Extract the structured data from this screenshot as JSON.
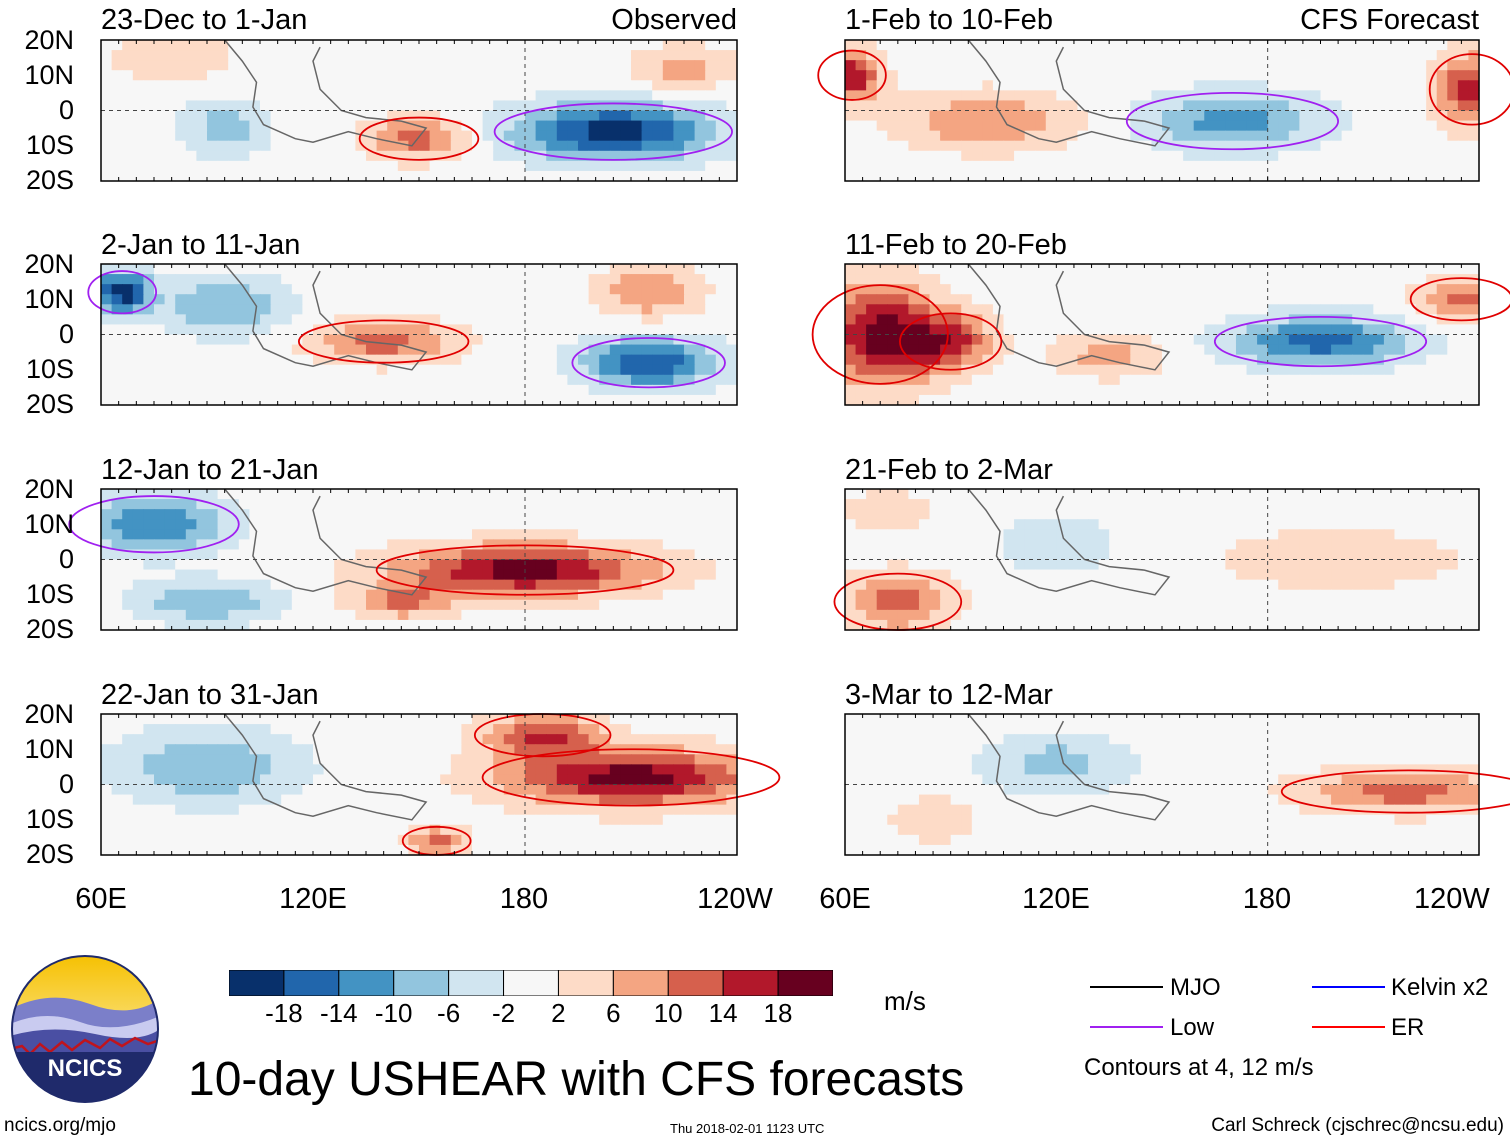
{
  "figure": {
    "title": "10-day USHEAR with CFS forecasts",
    "observed_label": "Observed",
    "forecast_label": "CFS Forecast",
    "units": "m/s",
    "contour_note": "Contours at 4, 12 m/s",
    "footer_url": "ncics.org/mjo",
    "footer_time": "Thu 2018-02-01 1123 UTC",
    "footer_credit": "Carl Schreck (cjschrec@ncsu.edu)",
    "logo_text": "NCICS"
  },
  "axes": {
    "lat_labels": [
      "20N",
      "10N",
      "0",
      "10S",
      "20S"
    ],
    "lon_labels": [
      "60E",
      "120E",
      "180",
      "120W"
    ]
  },
  "colorbar": {
    "labels": [
      "-18",
      "-14",
      "-10",
      "-6",
      "-2",
      "2",
      "6",
      "10",
      "14",
      "18"
    ],
    "colors": [
      "#08306b",
      "#2166ac",
      "#4393c3",
      "#92c5de",
      "#d1e5f0",
      "#f7f7f7",
      "#fddbc7",
      "#f4a582",
      "#d6604d",
      "#b2182b",
      "#67001f"
    ]
  },
  "legend": [
    {
      "name": "MJO",
      "color": "#000000"
    },
    {
      "name": "Kelvin x2",
      "color": "#0000ff"
    },
    {
      "name": "Low",
      "color": "#a020f0"
    },
    {
      "name": "ER",
      "color": "#ff0000"
    }
  ],
  "chart_data": {
    "type": "heatmap",
    "variable": "USHEAR (10-day mean)",
    "units": "m/s",
    "x_range": [
      "60E",
      "120W"
    ],
    "y_range": [
      "20S",
      "20N"
    ],
    "contour_levels": [
      4,
      12
    ],
    "panels": [
      {
        "id": "obs1",
        "label": "23-Dec to 1-Jan",
        "type": "Observed",
        "blobs": [
          {
            "lon": 205,
            "lat": -6,
            "value": -20,
            "rlon": 28,
            "rlat": 8
          },
          {
            "lon": 150,
            "lat": -8,
            "value": 12,
            "rlon": 14,
            "rlat": 6
          },
          {
            "lon": 80,
            "lat": 15,
            "value": 6,
            "rlon": 16,
            "rlat": 7
          },
          {
            "lon": 225,
            "lat": 12,
            "value": 8,
            "rlon": 14,
            "rlat": 6
          },
          {
            "lon": 95,
            "lat": -5,
            "value": -8,
            "rlon": 12,
            "rlat": 8
          }
        ]
      },
      {
        "id": "obs2",
        "label": "2-Jan to 11-Jan",
        "type": "Observed",
        "blobs": [
          {
            "lon": 66,
            "lat": 12,
            "value": -20,
            "rlon": 8,
            "rlat": 6
          },
          {
            "lon": 140,
            "lat": -2,
            "value": 12,
            "rlon": 20,
            "rlat": 6
          },
          {
            "lon": 215,
            "lat": -8,
            "value": -18,
            "rlon": 18,
            "rlat": 7
          },
          {
            "lon": 215,
            "lat": 12,
            "value": 10,
            "rlon": 14,
            "rlat": 7
          },
          {
            "lon": 95,
            "lat": 8,
            "value": -10,
            "rlon": 18,
            "rlat": 8
          }
        ]
      },
      {
        "id": "obs3",
        "label": "12-Jan to 21-Jan",
        "type": "Observed",
        "blobs": [
          {
            "lon": 180,
            "lat": -3,
            "value": 20,
            "rlon": 35,
            "rlat": 7
          },
          {
            "lon": 75,
            "lat": 10,
            "value": -14,
            "rlon": 20,
            "rlat": 8
          },
          {
            "lon": 90,
            "lat": -12,
            "value": -10,
            "rlon": 20,
            "rlat": 6
          },
          {
            "lon": 145,
            "lat": -12,
            "value": 10,
            "rlon": 14,
            "rlat": 5
          }
        ]
      },
      {
        "id": "obs4",
        "label": "22-Jan to 31-Jan",
        "type": "Observed",
        "blobs": [
          {
            "lon": 210,
            "lat": 2,
            "value": 20,
            "rlon": 35,
            "rlat": 8
          },
          {
            "lon": 185,
            "lat": 14,
            "value": 14,
            "rlon": 16,
            "rlat": 6
          },
          {
            "lon": 90,
            "lat": 5,
            "value": -10,
            "rlon": 25,
            "rlat": 10
          },
          {
            "lon": 155,
            "lat": -16,
            "value": 12,
            "rlon": 8,
            "rlat": 4
          }
        ]
      },
      {
        "id": "fc1",
        "label": "1-Feb to 10-Feb",
        "type": "CFS Forecast",
        "blobs": [
          {
            "lon": 62,
            "lat": 10,
            "value": 18,
            "rlon": 8,
            "rlat": 7
          },
          {
            "lon": 100,
            "lat": -3,
            "value": 10,
            "rlon": 25,
            "rlat": 8
          },
          {
            "lon": 170,
            "lat": -3,
            "value": -12,
            "rlon": 25,
            "rlat": 8
          },
          {
            "lon": 238,
            "lat": 6,
            "value": 16,
            "rlon": 10,
            "rlat": 10
          }
        ]
      },
      {
        "id": "fc2",
        "label": "11-Feb to 20-Feb",
        "type": "CFS Forecast",
        "blobs": [
          {
            "lon": 70,
            "lat": 0,
            "value": 20,
            "rlon": 16,
            "rlat": 14
          },
          {
            "lon": 90,
            "lat": -2,
            "value": 14,
            "rlon": 12,
            "rlat": 8
          },
          {
            "lon": 195,
            "lat": -2,
            "value": -16,
            "rlon": 25,
            "rlat": 7
          },
          {
            "lon": 235,
            "lat": 10,
            "value": 12,
            "rlon": 12,
            "rlat": 6
          },
          {
            "lon": 135,
            "lat": -6,
            "value": 8,
            "rlon": 15,
            "rlat": 6
          }
        ]
      },
      {
        "id": "fc3",
        "label": "21-Feb to 2-Mar",
        "type": "CFS Forecast",
        "blobs": [
          {
            "lon": 75,
            "lat": -12,
            "value": 12,
            "rlon": 15,
            "rlat": 8
          },
          {
            "lon": 120,
            "lat": 4,
            "value": -6,
            "rlon": 15,
            "rlat": 8
          },
          {
            "lon": 200,
            "lat": 0,
            "value": 4,
            "rlon": 40,
            "rlat": 10
          },
          {
            "lon": 72,
            "lat": 14,
            "value": 6,
            "rlon": 12,
            "rlat": 5
          }
        ]
      },
      {
        "id": "fc4",
        "label": "3-Mar to 12-Mar",
        "type": "CFS Forecast",
        "blobs": [
          {
            "lon": 220,
            "lat": -2,
            "value": 12,
            "rlon": 30,
            "rlat": 6
          },
          {
            "lon": 120,
            "lat": 6,
            "value": -8,
            "rlon": 20,
            "rlat": 8
          },
          {
            "lon": 85,
            "lat": -10,
            "value": 6,
            "rlon": 12,
            "rlat": 6
          }
        ]
      }
    ]
  }
}
